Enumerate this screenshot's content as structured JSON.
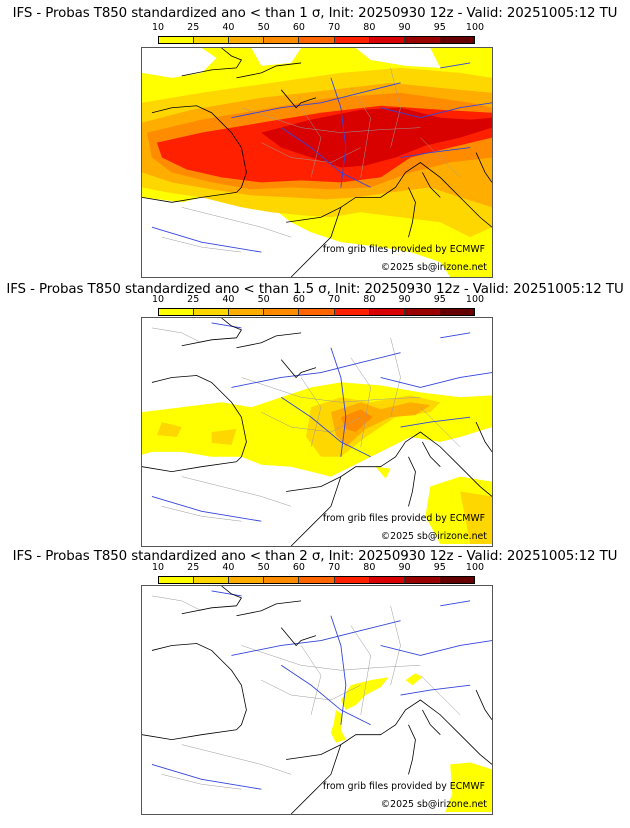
{
  "colorbar": {
    "ticks": [
      "10",
      "25",
      "40",
      "50",
      "60",
      "70",
      "80",
      "90",
      "95",
      "100"
    ],
    "colors": [
      "#ffff00",
      "#ffd700",
      "#ffae00",
      "#ff8c00",
      "#ff6600",
      "#ff2000",
      "#d90000",
      "#990000",
      "#660000"
    ]
  },
  "panels": [
    {
      "title": "IFS - Probas T850  standardized ano < than 1 σ, Init: 20250930 12z - Valid: 20251005:12 TU",
      "credit_source": "from grib files provided by ECMWF",
      "credit_copyright": "©2025 sb@irizone.net"
    },
    {
      "title": "IFS - Probas T850  standardized ano < than 1.5 σ, Init: 20250930 12z - Valid: 20251005:12 TU",
      "credit_source": "from grib files provided by ECMWF",
      "credit_copyright": "©2025 sb@irizone.net"
    },
    {
      "title": "IFS - Probas T850  standardized ano < than 2 σ, Init: 20250930 12z - Valid: 20251005:12 TU",
      "credit_source": "from grib files provided by ECMWF",
      "credit_copyright": "©2025 sb@irizone.net"
    }
  ]
}
